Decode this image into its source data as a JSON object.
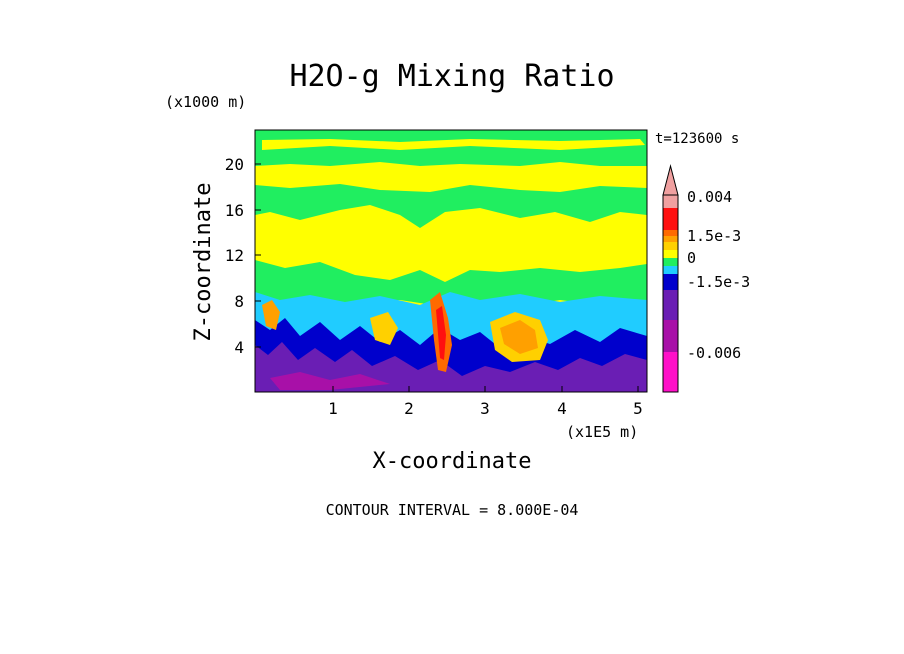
{
  "chart_data": {
    "type": "heatmap",
    "title": "H2O-g Mixing Ratio",
    "time_label": "t=123600 s",
    "xlabel": "X-coordinate",
    "ylabel": "Z-coordinate",
    "x_unit_label": "(x1E5 m)",
    "y_unit_label": "(x1000 m)",
    "xlim": [
      0,
      5.15
    ],
    "ylim": [
      0,
      23
    ],
    "x_ticks": [
      1,
      2,
      3,
      4,
      5
    ],
    "y_ticks": [
      4,
      8,
      12,
      16,
      20
    ],
    "x_tick_labels": [
      "1",
      "2",
      "3",
      "4",
      "5"
    ],
    "y_tick_labels": [
      "4",
      "8",
      "12",
      "16",
      "20"
    ],
    "contour_interval_text": "CONTOUR INTERVAL = 8.000E-04",
    "colorbar": {
      "levels_top_to_bottom": [
        {
          "color": "#f0a0a0"
        },
        {
          "color": "#ff1010"
        },
        {
          "color": "#ff6a00"
        },
        {
          "color": "#ffa000"
        },
        {
          "color": "#ffd000"
        },
        {
          "color": "#ffff00"
        },
        {
          "color": "#20ee60"
        },
        {
          "color": "#20ccff"
        },
        {
          "color": "#0000cc"
        },
        {
          "color": "#6a1eb4"
        },
        {
          "color": "#a810a8"
        },
        {
          "color": "#ff10c8"
        }
      ],
      "labels": [
        "0.004",
        "1.5e-3",
        "0",
        "-1.5e-3",
        "-0.006"
      ]
    }
  }
}
